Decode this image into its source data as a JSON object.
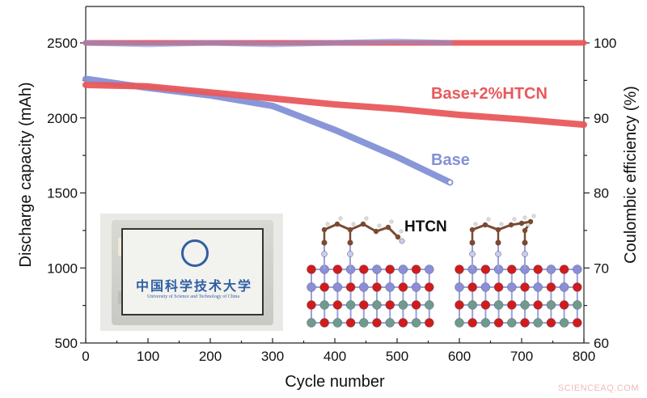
{
  "chart_data": {
    "type": "line",
    "title": "",
    "xlabel": "Cycle number",
    "ylabel": "Discharge capacity (mAh)",
    "ylabel_right": "Coulombic efficiency (%)",
    "xlim": [
      0,
      800
    ],
    "ylim": [
      500,
      2700
    ],
    "ylim_right": [
      60,
      105
    ],
    "x_ticks": [
      "0",
      "100",
      "200",
      "300",
      "400",
      "500",
      "600",
      "700",
      "800"
    ],
    "y_ticks": [
      "500",
      "1000",
      "1500",
      "2000",
      "2500"
    ],
    "y_ticks_right": [
      "60",
      "70",
      "80",
      "90",
      "100"
    ],
    "grid": false,
    "series": [
      {
        "name": "Base+2%HTCN",
        "axis": "left",
        "color": "#e8595c",
        "x": [
          0,
          100,
          200,
          300,
          400,
          500,
          600,
          700,
          800
        ],
        "values": [
          2220,
          2210,
          2170,
          2130,
          2090,
          2060,
          2020,
          1990,
          1955
        ]
      },
      {
        "name": "Base",
        "axis": "left",
        "color": "#8391d6",
        "x": [
          0,
          100,
          200,
          300,
          400,
          500,
          585
        ],
        "values": [
          2260,
          2200,
          2150,
          2080,
          1920,
          1740,
          1570
        ]
      },
      {
        "name": "Base+2%HTCN CE",
        "axis": "right",
        "color": "#e8595c",
        "x": [
          0,
          100,
          200,
          300,
          400,
          500,
          600,
          700,
          800
        ],
        "values": [
          100,
          100,
          100,
          100,
          100,
          100,
          100,
          100,
          100
        ]
      },
      {
        "name": "Base CE",
        "axis": "right",
        "color": "#8391d6",
        "x": [
          0,
          100,
          200,
          300,
          400,
          500,
          585
        ],
        "values": [
          100,
          99.8,
          100,
          99.8,
          100,
          100.2,
          100
        ]
      }
    ],
    "annotations": [
      {
        "text": "Base+2%HTCN",
        "color": "#e8595c"
      },
      {
        "text": "Base",
        "color": "#8391d6"
      },
      {
        "text": "HTCN",
        "color": "#111111"
      }
    ]
  },
  "axes": {
    "x_title": "Cycle number",
    "y_left_title": "Discharge capacity (mAh)",
    "y_right_title": "Coulombic efficiency (%)",
    "x_ticks": [
      "0",
      "100",
      "200",
      "300",
      "400",
      "500",
      "600",
      "700",
      "800"
    ],
    "y_left_ticks": [
      "500",
      "1000",
      "1500",
      "2000",
      "2500"
    ],
    "y_right_ticks": [
      "60",
      "70",
      "80",
      "90",
      "100"
    ]
  },
  "labels": {
    "series_htcn": "Base+2%HTCN",
    "series_base": "Base",
    "molecule": "HTCN"
  },
  "inset_photo": {
    "cn_text": "中国科学技术大学",
    "en_text": "University of Science and Technology of China"
  },
  "watermark": "SCIENCEAQ.COM"
}
